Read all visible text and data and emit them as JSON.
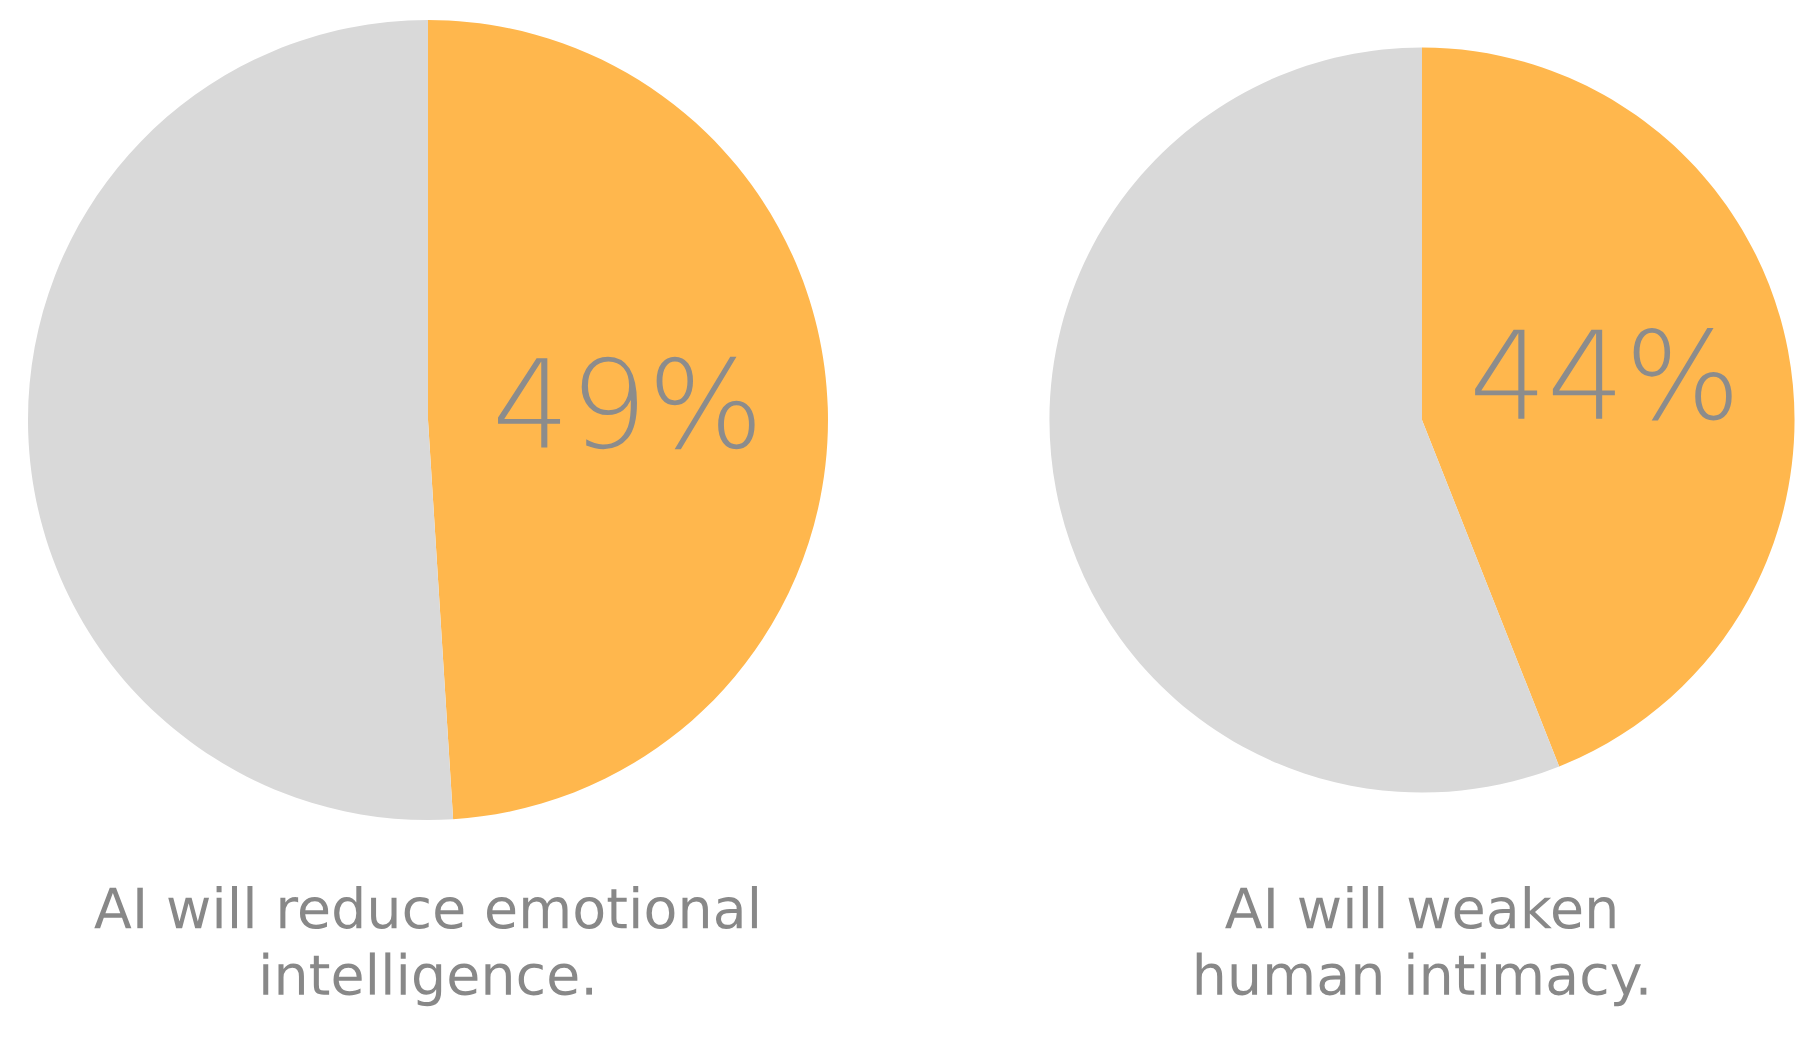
{
  "chart_data": [
    {
      "type": "pie",
      "title": "AI will reduce emotional\nintelligence.",
      "categories": [
        null,
        null
      ],
      "values": [
        49,
        51
      ],
      "colors": [
        "#ffb74d",
        "#d9d9d9"
      ],
      "value_labels": [
        "49%",
        null
      ],
      "legend": false
    },
    {
      "type": "pie",
      "title": "AI will weaken\nhuman intimacy.",
      "categories": [
        null,
        null
      ],
      "values": [
        44,
        56
      ],
      "colors": [
        "#ffb74d",
        "#d9d9d9"
      ],
      "value_labels": [
        "44%",
        null
      ],
      "legend": false
    }
  ]
}
